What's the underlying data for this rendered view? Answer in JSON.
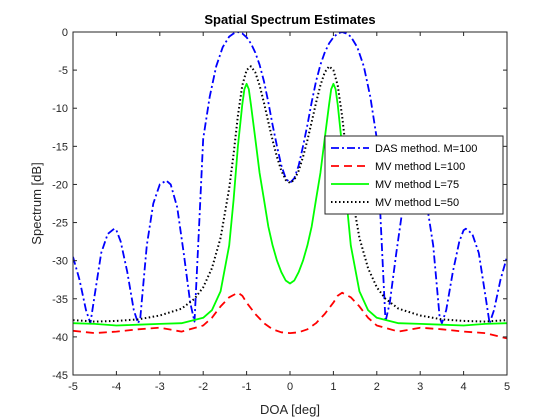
{
  "chart_data": {
    "type": "line",
    "title": "Spatial Spectrum Estimates",
    "xlabel": "DOA [deg]",
    "ylabel": "Spectrum [dB]",
    "xlim": [
      -5,
      5
    ],
    "ylim": [
      -45,
      0
    ],
    "xticks": [
      -5,
      -4,
      -3,
      -2,
      -1,
      0,
      1,
      2,
      3,
      4,
      5
    ],
    "yticks": [
      0,
      -5,
      -10,
      -15,
      -20,
      -25,
      -30,
      -35,
      -40,
      -45
    ],
    "grid": false,
    "legend_position": "right",
    "series": [
      {
        "name": "DAS method. M=100",
        "color": "#0000ff",
        "style": "dashdot",
        "x": [
          -5.0,
          -4.85,
          -4.7,
          -4.6,
          -4.5,
          -4.35,
          -4.2,
          -4.05,
          -4.0,
          -3.9,
          -3.75,
          -3.6,
          -3.5,
          -3.45,
          -3.3,
          -3.15,
          -3.0,
          -2.85,
          -2.75,
          -2.6,
          -2.45,
          -2.3,
          -2.2,
          -2.1,
          -2.0,
          -1.85,
          -1.7,
          -1.55,
          -1.4,
          -1.3,
          -1.2,
          -1.1,
          -1.0,
          -0.9,
          -0.8,
          -0.7,
          -0.6,
          -0.5,
          -0.4,
          -0.3,
          -0.2,
          -0.1,
          0.0,
          0.1,
          0.2,
          0.3,
          0.4,
          0.5,
          0.6,
          0.7,
          0.8,
          0.9,
          1.0,
          1.1,
          1.2,
          1.3,
          1.4,
          1.55,
          1.7,
          1.85,
          2.0,
          2.1,
          2.2,
          2.3,
          2.45,
          2.6,
          2.75,
          2.85,
          3.0,
          3.15,
          3.3,
          3.45,
          3.5,
          3.6,
          3.75,
          3.9,
          4.0,
          4.05,
          4.2,
          4.35,
          4.5,
          4.6,
          4.7,
          4.85,
          5.0
        ],
        "y": [
          -29.5,
          -32.5,
          -36.5,
          -38.2,
          -34.5,
          -29.0,
          -26.5,
          -25.8,
          -26.0,
          -27.5,
          -31.5,
          -36.5,
          -38.2,
          -37.5,
          -28.0,
          -22.5,
          -20.0,
          -19.5,
          -20.0,
          -23.0,
          -29.0,
          -35.5,
          -38.0,
          -26.0,
          -14.0,
          -8.5,
          -4.5,
          -2.0,
          -0.6,
          -0.2,
          0.0,
          -0.2,
          -0.7,
          -1.5,
          -2.7,
          -4.3,
          -6.5,
          -9.2,
          -12.2,
          -15.0,
          -17.5,
          -19.2,
          -19.8,
          -19.2,
          -17.5,
          -15.0,
          -12.2,
          -9.2,
          -6.5,
          -4.3,
          -2.7,
          -1.5,
          -0.7,
          -0.2,
          0.0,
          -0.2,
          -0.6,
          -2.0,
          -4.5,
          -8.5,
          -14.0,
          -26.0,
          -38.0,
          -35.5,
          -29.0,
          -23.0,
          -20.0,
          -19.5,
          -20.0,
          -22.5,
          -28.0,
          -37.5,
          -38.2,
          -36.5,
          -31.5,
          -27.5,
          -26.0,
          -25.8,
          -26.5,
          -29.0,
          -34.5,
          -38.2,
          -36.5,
          -32.5,
          -29.5
        ]
      },
      {
        "name": "MV method L=100",
        "color": "#ff0000",
        "style": "dashed",
        "x": [
          -5.0,
          -4.5,
          -4.0,
          -3.5,
          -3.0,
          -2.5,
          -2.0,
          -1.8,
          -1.6,
          -1.4,
          -1.2,
          -1.1,
          -1.0,
          -0.8,
          -0.6,
          -0.4,
          -0.2,
          0.0,
          0.2,
          0.4,
          0.6,
          0.8,
          1.0,
          1.1,
          1.2,
          1.4,
          1.6,
          1.8,
          2.0,
          2.5,
          3.0,
          3.5,
          4.0,
          4.5,
          5.0
        ],
        "y": [
          -39.2,
          -39.5,
          -39.3,
          -39.0,
          -38.8,
          -39.3,
          -38.5,
          -37.5,
          -36.0,
          -34.8,
          -34.2,
          -34.6,
          -35.5,
          -37.0,
          -38.2,
          -39.0,
          -39.4,
          -39.5,
          -39.4,
          -39.0,
          -38.2,
          -37.0,
          -35.5,
          -34.6,
          -34.2,
          -34.8,
          -36.0,
          -37.5,
          -38.5,
          -39.3,
          -38.8,
          -39.0,
          -39.3,
          -39.5,
          -40.2
        ]
      },
      {
        "name": "MV method L=75",
        "color": "#00ff00",
        "style": "solid",
        "x": [
          -5.0,
          -4.5,
          -4.0,
          -3.5,
          -3.0,
          -2.5,
          -2.0,
          -1.8,
          -1.6,
          -1.4,
          -1.3,
          -1.2,
          -1.1,
          -1.05,
          -1.0,
          -0.95,
          -0.9,
          -0.8,
          -0.7,
          -0.6,
          -0.5,
          -0.4,
          -0.3,
          -0.2,
          -0.1,
          0.0,
          0.1,
          0.2,
          0.3,
          0.4,
          0.5,
          0.6,
          0.7,
          0.8,
          0.9,
          0.95,
          1.0,
          1.05,
          1.1,
          1.2,
          1.3,
          1.4,
          1.6,
          1.8,
          2.0,
          2.5,
          3.0,
          3.5,
          4.0,
          4.5,
          5.0
        ],
        "y": [
          -38.2,
          -38.3,
          -38.5,
          -38.4,
          -38.3,
          -38.2,
          -37.5,
          -36.5,
          -34.0,
          -28.0,
          -22.0,
          -15.0,
          -9.5,
          -7.5,
          -6.8,
          -7.5,
          -9.5,
          -14.0,
          -18.5,
          -22.0,
          -25.5,
          -28.0,
          -30.0,
          -31.5,
          -32.6,
          -33.0,
          -32.6,
          -31.5,
          -30.0,
          -28.0,
          -25.5,
          -22.0,
          -18.5,
          -14.0,
          -9.5,
          -7.5,
          -6.8,
          -7.5,
          -9.5,
          -15.0,
          -22.0,
          -28.0,
          -34.0,
          -36.5,
          -37.5,
          -38.2,
          -38.3,
          -38.4,
          -38.5,
          -38.3,
          -38.2
        ]
      },
      {
        "name": "MV method L=50",
        "color": "#000000",
        "style": "dotted",
        "x": [
          -5.0,
          -4.5,
          -4.0,
          -3.5,
          -3.0,
          -2.5,
          -2.2,
          -2.0,
          -1.8,
          -1.6,
          -1.4,
          -1.3,
          -1.2,
          -1.1,
          -1.0,
          -0.9,
          -0.8,
          -0.7,
          -0.6,
          -0.5,
          -0.4,
          -0.3,
          -0.2,
          -0.1,
          0.0,
          0.1,
          0.2,
          0.3,
          0.4,
          0.5,
          0.6,
          0.7,
          0.8,
          0.9,
          1.0,
          1.1,
          1.2,
          1.3,
          1.4,
          1.6,
          1.8,
          2.0,
          2.2,
          2.5,
          3.0,
          3.5,
          4.0,
          4.5,
          5.0
        ],
        "y": [
          -37.8,
          -38.0,
          -37.9,
          -37.7,
          -37.2,
          -36.3,
          -35.0,
          -33.5,
          -31.0,
          -27.0,
          -20.5,
          -16.0,
          -11.0,
          -7.0,
          -5.0,
          -4.5,
          -5.3,
          -7.0,
          -9.3,
          -11.8,
          -14.2,
          -16.4,
          -18.2,
          -19.4,
          -19.8,
          -19.4,
          -18.2,
          -16.4,
          -14.2,
          -11.8,
          -9.3,
          -7.0,
          -5.3,
          -4.5,
          -5.0,
          -7.0,
          -11.0,
          -16.0,
          -20.5,
          -27.0,
          -31.0,
          -33.5,
          -35.0,
          -36.3,
          -37.2,
          -37.7,
          -37.9,
          -38.0,
          -37.8
        ]
      }
    ]
  }
}
